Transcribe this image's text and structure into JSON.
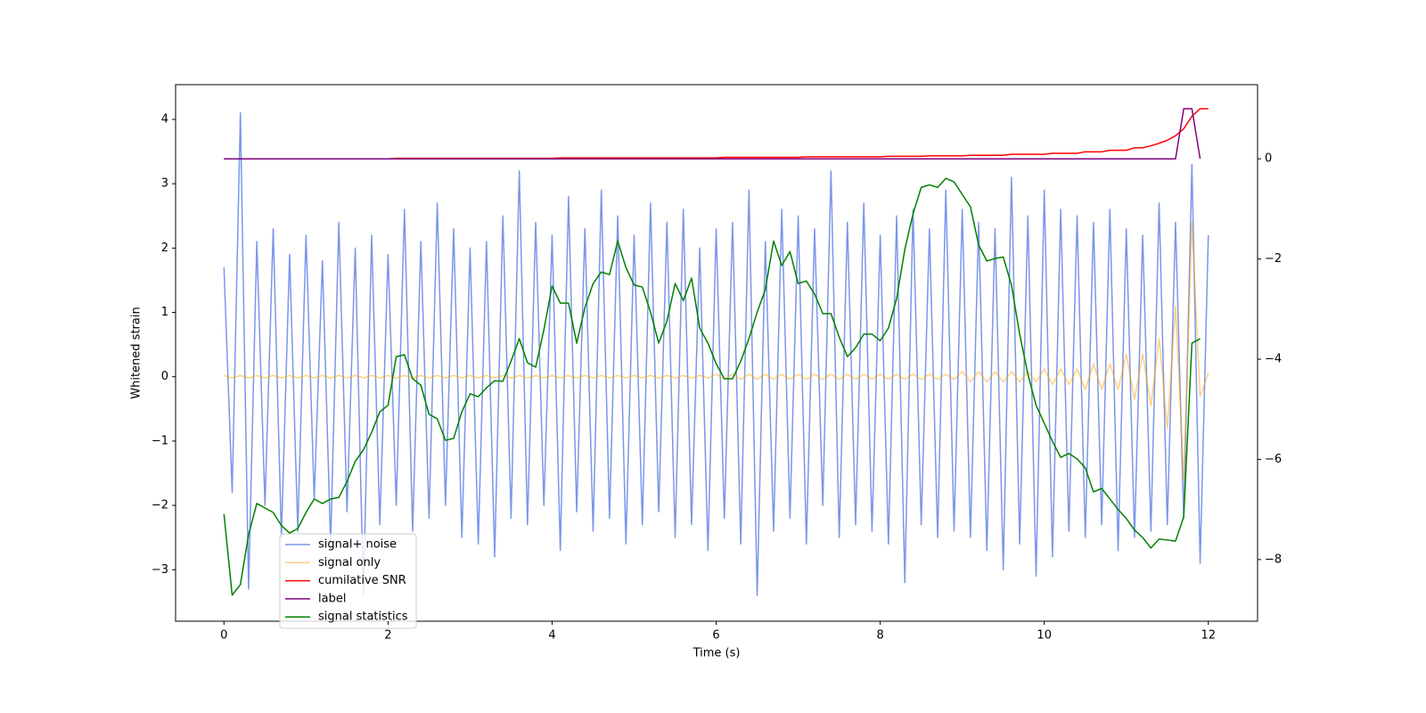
{
  "chart_data": {
    "type": "line",
    "xlabel": "Time (s)",
    "ylabel": "Whitened strain",
    "xlim": [
      -0.59,
      12.6
    ],
    "ylim": [
      -3.8,
      4.54
    ],
    "y2lim": [
      -9.23,
      1.48
    ],
    "xticks": [
      0,
      2,
      4,
      6,
      8,
      10,
      12
    ],
    "yticks": [
      {
        "value": -3,
        "label": "−3"
      },
      {
        "value": -2,
        "label": "−2"
      },
      {
        "value": -1,
        "label": "−1"
      },
      0,
      1,
      2,
      3,
      4
    ],
    "y2ticks": [
      {
        "value": -8,
        "label": "−8"
      },
      {
        "value": -6,
        "label": "−6"
      },
      {
        "value": -4,
        "label": "−4"
      },
      {
        "value": -2,
        "label": "−2"
      },
      0
    ],
    "legend": "lower left",
    "x": [
      0.0,
      0.1,
      0.2,
      0.3,
      0.4,
      0.5,
      0.6,
      0.7,
      0.8,
      0.9,
      1.0,
      1.1,
      1.2,
      1.3,
      1.4,
      1.5,
      1.6,
      1.7,
      1.8,
      1.9,
      2.0,
      2.1,
      2.2,
      2.3,
      2.4,
      2.5,
      2.6,
      2.7,
      2.8,
      2.9,
      3.0,
      3.1,
      3.2,
      3.3,
      3.4,
      3.5,
      3.6,
      3.7,
      3.8,
      3.9,
      4.0,
      4.1,
      4.2,
      4.3,
      4.4,
      4.5,
      4.6,
      4.7,
      4.8,
      4.9,
      5.0,
      5.1,
      5.2,
      5.3,
      5.4,
      5.5,
      5.6,
      5.7,
      5.8,
      5.9,
      6.0,
      6.1,
      6.2,
      6.3,
      6.4,
      6.5,
      6.6,
      6.7,
      6.8,
      6.9,
      7.0,
      7.1,
      7.2,
      7.3,
      7.4,
      7.5,
      7.6,
      7.7,
      7.8,
      7.9,
      8.0,
      8.1,
      8.2,
      8.3,
      8.4,
      8.5,
      8.6,
      8.7,
      8.8,
      8.9,
      9.0,
      9.1,
      9.2,
      9.3,
      9.4,
      9.5,
      9.6,
      9.7,
      9.8,
      9.9,
      10.0,
      10.1,
      10.2,
      10.3,
      10.4,
      10.5,
      10.6,
      10.7,
      10.8,
      10.9,
      11.0,
      11.1,
      11.2,
      11.3,
      11.4,
      11.5,
      11.6,
      11.7,
      11.8,
      11.9,
      12.0
    ],
    "series": [
      {
        "name": "signal+ noise",
        "color": "#4169e1",
        "axis": "y",
        "values": [
          1.7,
          -1.8,
          4.1,
          -3.3,
          2.1,
          -2.0,
          2.3,
          -2.5,
          1.9,
          -2.4,
          2.2,
          -1.9,
          1.8,
          -2.6,
          2.4,
          -2.1,
          2.0,
          -3.4,
          2.2,
          -2.3,
          1.9,
          -2.0,
          2.6,
          -2.4,
          2.1,
          -2.2,
          2.7,
          -2.0,
          2.3,
          -2.5,
          2.0,
          -2.6,
          2.1,
          -2.8,
          2.5,
          -2.2,
          3.2,
          -2.3,
          2.4,
          -2.0,
          2.2,
          -2.7,
          2.8,
          -2.1,
          2.3,
          -2.4,
          2.9,
          -2.2,
          2.5,
          -2.6,
          2.2,
          -2.3,
          2.7,
          -2.1,
          2.4,
          -2.5,
          2.6,
          -2.3,
          2.0,
          -2.7,
          2.3,
          -2.2,
          2.4,
          -2.6,
          2.9,
          -3.4,
          2.1,
          -2.4,
          2.6,
          -2.2,
          2.5,
          -2.6,
          2.3,
          -2.0,
          3.2,
          -2.5,
          2.4,
          -2.3,
          2.7,
          -2.4,
          2.2,
          -2.6,
          2.5,
          -3.2,
          2.6,
          -2.3,
          2.3,
          -2.5,
          2.9,
          -2.4,
          2.6,
          -2.5,
          2.4,
          -2.7,
          2.3,
          -3.0,
          3.1,
          -2.6,
          2.5,
          -3.1,
          2.9,
          -2.8,
          2.6,
          -2.4,
          2.5,
          -2.5,
          2.4,
          -2.3,
          2.6,
          -2.7,
          2.3,
          -2.5,
          2.2,
          -2.4,
          2.7,
          -2.3,
          2.4,
          -2.2,
          3.3,
          -2.9,
          2.2
        ]
      },
      {
        "name": "signal only",
        "color": "#ffa500",
        "axis": "y",
        "values": [
          0.02,
          -0.02,
          0.02,
          -0.02,
          0.02,
          -0.02,
          0.02,
          -0.02,
          0.02,
          -0.02,
          0.02,
          -0.02,
          0.02,
          -0.02,
          0.02,
          -0.02,
          0.02,
          -0.02,
          0.02,
          -0.02,
          0.02,
          -0.02,
          0.02,
          -0.02,
          0.02,
          -0.02,
          0.02,
          -0.02,
          0.02,
          -0.02,
          0.02,
          -0.02,
          0.02,
          -0.02,
          0.02,
          -0.02,
          0.02,
          -0.02,
          0.02,
          -0.02,
          0.02,
          -0.02,
          0.02,
          -0.02,
          0.02,
          -0.02,
          0.02,
          -0.02,
          0.02,
          -0.02,
          0.02,
          -0.02,
          0.02,
          -0.02,
          0.02,
          -0.02,
          0.02,
          -0.02,
          0.02,
          -0.02,
          0.04,
          -0.04,
          0.04,
          -0.04,
          0.04,
          -0.04,
          0.04,
          -0.04,
          0.04,
          -0.04,
          0.04,
          -0.04,
          0.04,
          -0.04,
          0.04,
          -0.04,
          0.04,
          -0.04,
          0.04,
          -0.04,
          0.04,
          -0.04,
          0.04,
          -0.04,
          0.04,
          -0.04,
          0.04,
          -0.04,
          0.04,
          -0.04,
          0.08,
          -0.08,
          0.08,
          -0.08,
          0.08,
          -0.08,
          0.08,
          -0.08,
          0.08,
          -0.08,
          0.12,
          -0.12,
          0.12,
          -0.12,
          0.12,
          -0.2,
          0.2,
          -0.2,
          0.2,
          -0.2,
          0.35,
          -0.35,
          0.35,
          -0.45,
          0.6,
          -0.8,
          1.1,
          -1.6,
          2.4,
          -0.3,
          0.05
        ]
      },
      {
        "name": "cumilative SNR",
        "color": "#ff0000",
        "axis": "y2",
        "values": [
          0,
          0,
          0,
          0,
          0,
          0,
          0,
          0,
          0,
          0,
          0,
          0,
          0,
          0,
          0,
          0,
          0,
          0,
          0,
          0,
          0,
          0.01,
          0.01,
          0.01,
          0.01,
          0.01,
          0.01,
          0.01,
          0.01,
          0.01,
          0.01,
          0.01,
          0.01,
          0.01,
          0.01,
          0.01,
          0.01,
          0.01,
          0.01,
          0.01,
          0.01,
          0.02,
          0.02,
          0.02,
          0.02,
          0.02,
          0.02,
          0.02,
          0.02,
          0.02,
          0.02,
          0.02,
          0.02,
          0.02,
          0.02,
          0.02,
          0.02,
          0.02,
          0.02,
          0.02,
          0.02,
          0.03,
          0.03,
          0.03,
          0.03,
          0.03,
          0.03,
          0.03,
          0.03,
          0.03,
          0.03,
          0.04,
          0.04,
          0.04,
          0.04,
          0.04,
          0.04,
          0.04,
          0.04,
          0.04,
          0.04,
          0.05,
          0.05,
          0.05,
          0.05,
          0.05,
          0.06,
          0.06,
          0.06,
          0.06,
          0.06,
          0.07,
          0.07,
          0.07,
          0.07,
          0.07,
          0.09,
          0.09,
          0.09,
          0.09,
          0.09,
          0.11,
          0.11,
          0.11,
          0.11,
          0.14,
          0.14,
          0.14,
          0.17,
          0.17,
          0.17,
          0.22,
          0.22,
          0.26,
          0.31,
          0.37,
          0.46,
          0.6,
          0.85,
          1.0,
          1.0
        ]
      },
      {
        "name": "label",
        "color": "#800080",
        "axis": "y2",
        "values": [
          0,
          0,
          0,
          0,
          0,
          0,
          0,
          0,
          0,
          0,
          0,
          0,
          0,
          0,
          0,
          0,
          0,
          0,
          0,
          0,
          0,
          0,
          0,
          0,
          0,
          0,
          0,
          0,
          0,
          0,
          0,
          0,
          0,
          0,
          0,
          0,
          0,
          0,
          0,
          0,
          0,
          0,
          0,
          0,
          0,
          0,
          0,
          0,
          0,
          0,
          0,
          0,
          0,
          0,
          0,
          0,
          0,
          0,
          0,
          0,
          0,
          0,
          0,
          0,
          0,
          0,
          0,
          0,
          0,
          0,
          0,
          0,
          0,
          0,
          0,
          0,
          0,
          0,
          0,
          0,
          0,
          0,
          0,
          0,
          0,
          0,
          0,
          0,
          0,
          0,
          0,
          0,
          0,
          0,
          0,
          0,
          0,
          0,
          0,
          0,
          0,
          0,
          0,
          0,
          0,
          0,
          0,
          0,
          0,
          0,
          0,
          0,
          0,
          0,
          0,
          0,
          0,
          1,
          1,
          0,
          null
        ]
      },
      {
        "name": "signal statistics",
        "color": "#008000",
        "axis": "y2",
        "values": [
          -7.09,
          -8.71,
          -8.5,
          -7.5,
          -6.88,
          -6.97,
          -7.06,
          -7.32,
          -7.47,
          -7.38,
          -7.06,
          -6.79,
          -6.88,
          -6.79,
          -6.76,
          -6.44,
          -6.04,
          -5.81,
          -5.46,
          -5.05,
          -4.92,
          -3.95,
          -3.91,
          -4.39,
          -4.52,
          -5.1,
          -5.19,
          -5.62,
          -5.58,
          -5.05,
          -4.69,
          -4.75,
          -4.57,
          -4.43,
          -4.44,
          -4.04,
          -3.59,
          -4.07,
          -4.16,
          -3.41,
          -2.54,
          -2.88,
          -2.88,
          -3.68,
          -2.97,
          -2.49,
          -2.26,
          -2.31,
          -1.64,
          -2.17,
          -2.52,
          -2.56,
          -3.06,
          -3.68,
          -3.24,
          -2.49,
          -2.83,
          -2.38,
          -3.38,
          -3.68,
          -4.09,
          -4.39,
          -4.39,
          -4.04,
          -3.59,
          -3.06,
          -2.61,
          -1.64,
          -2.13,
          -1.85,
          -2.49,
          -2.44,
          -2.7,
          -3.09,
          -3.09,
          -3.56,
          -3.95,
          -3.77,
          -3.5,
          -3.5,
          -3.63,
          -3.38,
          -2.79,
          -1.81,
          -1.1,
          -0.57,
          -0.52,
          -0.57,
          -0.39,
          -0.46,
          -0.71,
          -0.96,
          -1.72,
          -2.04,
          -1.99,
          -1.96,
          -2.52,
          -3.5,
          -4.3,
          -4.92,
          -5.28,
          -5.64,
          -5.96,
          -5.88,
          -5.99,
          -6.17,
          -6.65,
          -6.58,
          -6.79,
          -7.0,
          -7.18,
          -7.41,
          -7.56,
          -7.77,
          -7.59,
          -7.61,
          -7.63,
          -7.15,
          -3.68,
          -3.59,
          null
        ]
      }
    ]
  }
}
